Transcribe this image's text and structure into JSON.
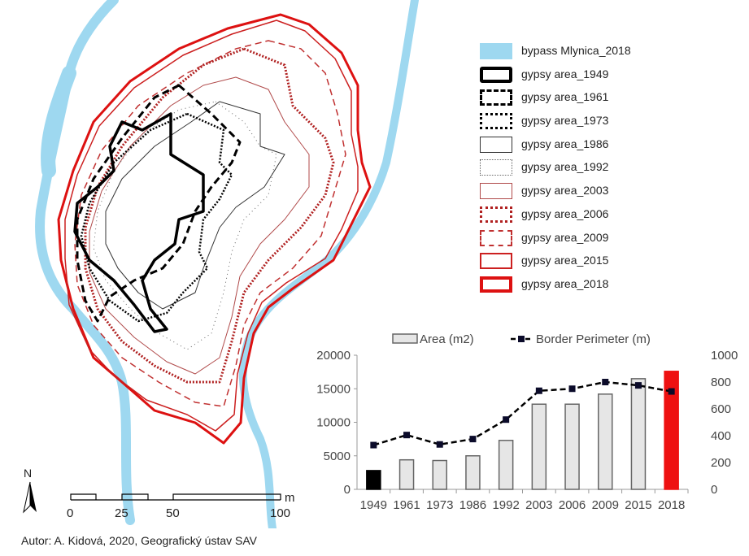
{
  "legend": {
    "items": [
      {
        "label": "bypass Mlynica_2018",
        "style": "fill",
        "color": "#9ed8f0"
      },
      {
        "label": "gypsy area_1949",
        "style": "solid-thick",
        "color": "#000000"
      },
      {
        "label": "gypsy area_1961",
        "style": "dashed-thick",
        "color": "#000000"
      },
      {
        "label": "gypsy area_1973",
        "style": "dotted-thick",
        "color": "#000000"
      },
      {
        "label": "gypsy area_1986",
        "style": "solid-thin",
        "color": "#333333"
      },
      {
        "label": "gypsy area_1992",
        "style": "hatched-thin",
        "color": "#666666"
      },
      {
        "label": "gypsy area_2003",
        "style": "hatched-thin",
        "color": "#b04a4a"
      },
      {
        "label": "gypsy area_2006",
        "style": "dotted-thick",
        "color": "#b02020"
      },
      {
        "label": "gypsy area_2009",
        "style": "dashed",
        "color": "#c03030"
      },
      {
        "label": "gypsy area_2015",
        "style": "solid",
        "color": "#cc2020"
      },
      {
        "label": "gypsy area_2018",
        "style": "solid-thick",
        "color": "#dd1111"
      }
    ]
  },
  "scale_bar": {
    "labels": [
      "0",
      "25",
      "50",
      "100"
    ],
    "unit": "m"
  },
  "north_label": "N",
  "footer": "Autor: A. Kidová, 2020, Geografický ústav SAV",
  "chart_data": {
    "type": "bar",
    "categories": [
      "1949",
      "1961",
      "1973",
      "1986",
      "1992",
      "2003",
      "2006",
      "2009",
      "2015",
      "2018"
    ],
    "series": [
      {
        "name": "Area (m2)",
        "type": "bar",
        "axis": "left",
        "values": [
          2800,
          4400,
          4300,
          5000,
          7300,
          12700,
          12700,
          14200,
          16500,
          17600
        ],
        "colors": [
          "#000000",
          "#e6e6e6",
          "#e6e6e6",
          "#e6e6e6",
          "#e6e6e6",
          "#e6e6e6",
          "#e6e6e6",
          "#e6e6e6",
          "#e6e6e6",
          "#ee1111"
        ]
      },
      {
        "name": "Border Perimeter (m)",
        "type": "line",
        "axis": "right",
        "values": [
          330,
          405,
          335,
          375,
          520,
          735,
          750,
          800,
          775,
          730
        ],
        "color": "#000000"
      }
    ],
    "y_left": {
      "min": 0,
      "max": 20000,
      "ticks": [
        "0",
        "5000",
        "10000",
        "15000",
        "20000"
      ]
    },
    "y_right": {
      "min": 0,
      "max": 1000,
      "ticks": [
        "0",
        "200",
        "400",
        "600",
        "800",
        "1000"
      ]
    },
    "legend_position": "top",
    "grid": false
  }
}
